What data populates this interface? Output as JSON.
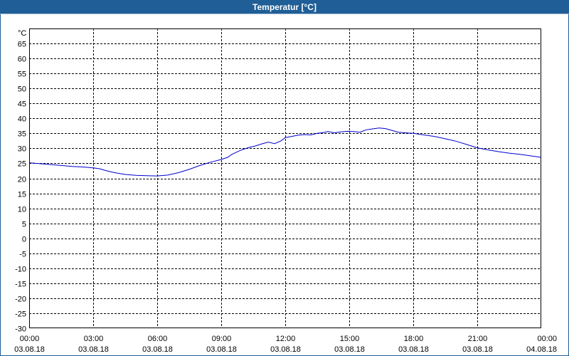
{
  "window": {
    "title": "Temperatur [°C]"
  },
  "chart_data": {
    "type": "line",
    "title": "Temperatur [°C]",
    "ylabel": "°C",
    "xlabel": "",
    "ylim": [
      -30,
      70
    ],
    "yticks": [
      65,
      60,
      55,
      50,
      45,
      40,
      35,
      30,
      25,
      20,
      15,
      10,
      5,
      0,
      -5,
      -10,
      -15,
      -20,
      -25,
      -30
    ],
    "xlim_hours": [
      0,
      24
    ],
    "xticks": [
      {
        "time": "00:00",
        "date": "03.08.18"
      },
      {
        "time": "03:00",
        "date": "03.08.18"
      },
      {
        "time": "06:00",
        "date": "03.08.18"
      },
      {
        "time": "09:00",
        "date": "03.08.18"
      },
      {
        "time": "12:00",
        "date": "03.08.18"
      },
      {
        "time": "15:00",
        "date": "03.08.18"
      },
      {
        "time": "18:00",
        "date": "03.08.18"
      },
      {
        "time": "21:00",
        "date": "03.08.18"
      },
      {
        "time": "00:00",
        "date": "04.08.18"
      }
    ],
    "grid": true,
    "line_color": "#0000cc",
    "series": [
      {
        "x": [
          0,
          0.5,
          1,
          1.5,
          2,
          2.5,
          3,
          3.3,
          3.6,
          4,
          4.5,
          5,
          5.5,
          6,
          6.5,
          7,
          7.5,
          8,
          8.5,
          9,
          9.3,
          9.5,
          9.8,
          10,
          10.3,
          10.6,
          10.9,
          11.2,
          11.5,
          11.8,
          12,
          12.3,
          12.6,
          12.9,
          13.2,
          13.5,
          13.8,
          14,
          14.3,
          14.6,
          14.9,
          15.2,
          15.5,
          15.8,
          16.1,
          16.4,
          16.7,
          17,
          17.3,
          17.6,
          18,
          18.5,
          19,
          19.5,
          20,
          20.5,
          21,
          21.5,
          22,
          22.5,
          23,
          23.5,
          24
        ],
        "y": [
          25.2,
          24.9,
          24.6,
          24.3,
          24.0,
          23.8,
          23.5,
          23.2,
          22.6,
          21.9,
          21.3,
          21.0,
          20.9,
          20.8,
          21.1,
          21.9,
          23.0,
          24.3,
          25.4,
          26.3,
          27.0,
          28.0,
          29.0,
          29.6,
          30.3,
          30.8,
          31.5,
          32.1,
          31.6,
          32.5,
          33.6,
          34.0,
          34.4,
          34.6,
          34.5,
          35.0,
          35.3,
          35.6,
          35.2,
          35.5,
          35.7,
          35.6,
          35.4,
          36.2,
          36.5,
          36.8,
          36.6,
          36.0,
          35.4,
          35.2,
          35.0,
          34.5,
          34.0,
          33.2,
          32.4,
          31.3,
          30.2,
          29.5,
          28.9,
          28.4,
          28.0,
          27.5,
          27.0
        ]
      }
    ]
  }
}
